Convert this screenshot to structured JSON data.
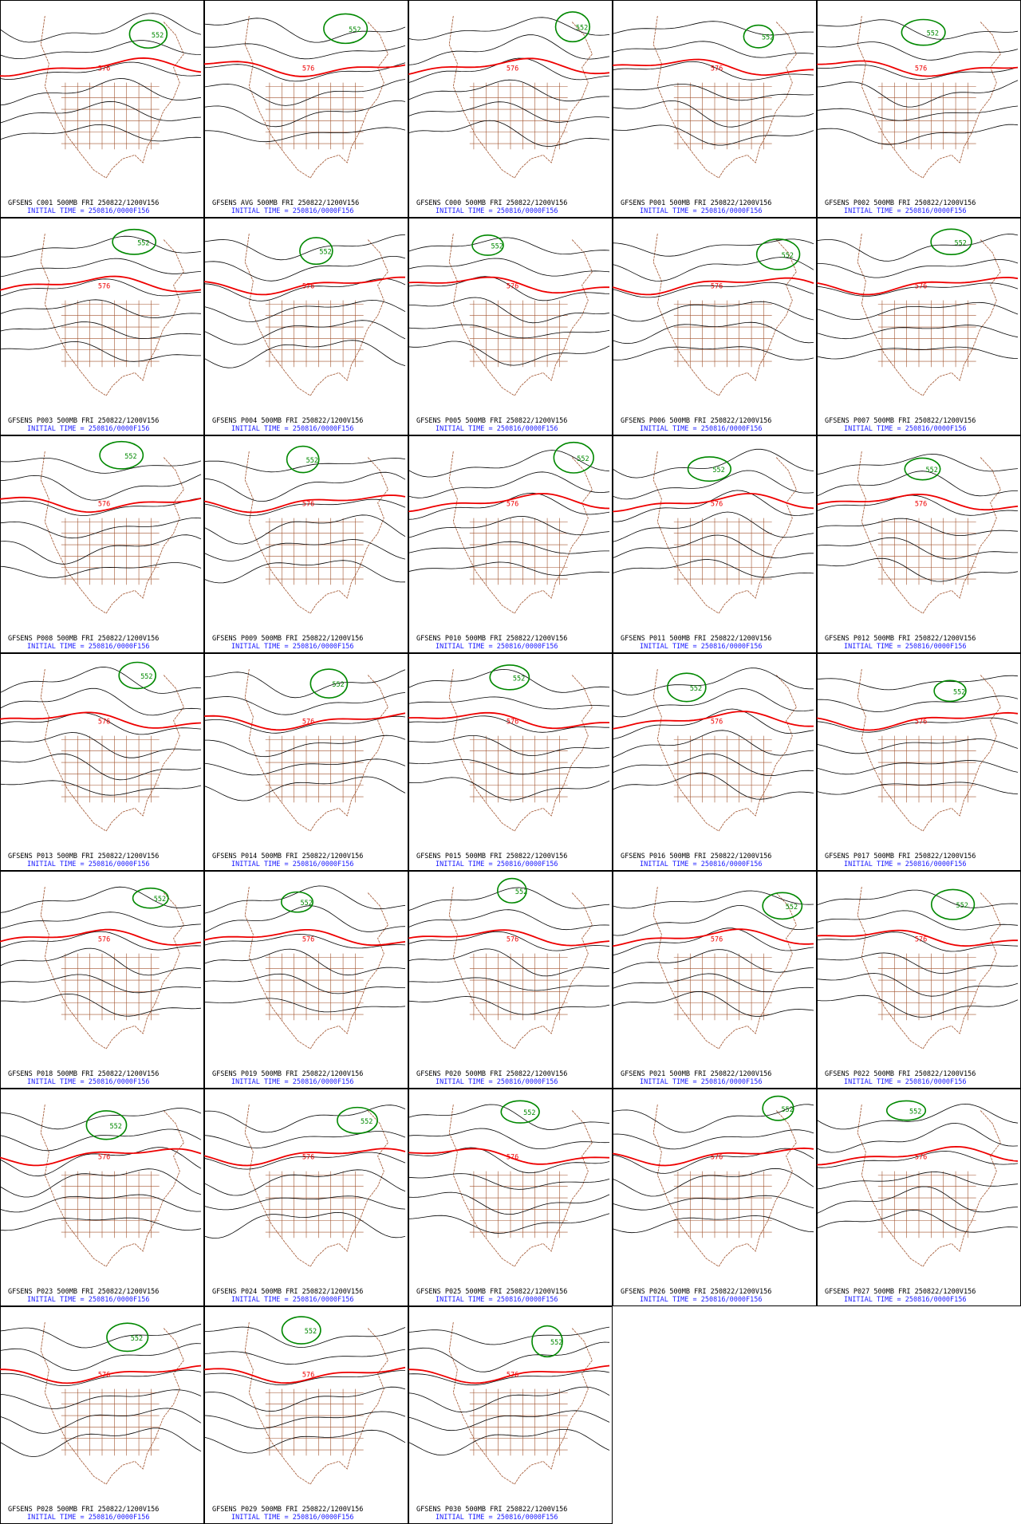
{
  "panels": [
    {
      "caption": "GFSENS C001 500MB FRI 250822/1200V156",
      "initial_time": "INITIAL TIME = 250816/0000F156",
      "labels": [
        "576",
        "552"
      ]
    },
    {
      "caption": "GFSENS AVG 500MB FRI 250822/1200V156",
      "initial_time": "INITIAL TIME = 250816/0000F156",
      "labels": [
        "576",
        "552"
      ]
    },
    {
      "caption": "GFSENS C000 500MB FRI 250822/1200V156",
      "initial_time": "INITIAL TIME = 250816/0000F156",
      "labels": [
        "576",
        "552"
      ]
    },
    {
      "caption": "GFSENS P001 500MB FRI 250822/1200V156",
      "initial_time": "INITIAL TIME = 250816/0000F156",
      "labels": [
        "576",
        "552"
      ]
    },
    {
      "caption": "GFSENS P002 500MB FRI 250822/1200V156",
      "initial_time": "INITIAL TIME = 250816/0000F156",
      "labels": [
        "576",
        "552"
      ]
    },
    {
      "caption": "GFSENS P003 500MB FRI 250822/1200V156",
      "initial_time": "INITIAL TIME = 250816/0000F156",
      "labels": [
        "576",
        "552"
      ]
    },
    {
      "caption": "GFSENS P004 500MB FRI 250822/1200V156",
      "initial_time": "INITIAL TIME = 250816/0000F156",
      "labels": [
        "576",
        "552"
      ]
    },
    {
      "caption": "GFSENS P005 500MB FRI 250822/1200V156",
      "initial_time": "INITIAL TIME = 250816/0000F156",
      "labels": [
        "576",
        "552"
      ]
    },
    {
      "caption": "GFSENS P006 500MB FRI 250822/1200V156",
      "initial_time": "INITIAL TIME = 250816/0000F156",
      "labels": [
        "576",
        "552"
      ]
    },
    {
      "caption": "GFSENS P007 500MB FRI 250822/1200V156",
      "initial_time": "INITIAL TIME = 250816/0000F156",
      "labels": [
        "576",
        "552"
      ]
    },
    {
      "caption": "GFSENS P008 500MB FRI 250822/1200V156",
      "initial_time": "INITIAL TIME = 250816/0000F156",
      "labels": [
        "576",
        "552"
      ]
    },
    {
      "caption": "GFSENS P009 500MB FRI 250822/1200V156",
      "initial_time": "INITIAL TIME = 250816/0000F156",
      "labels": [
        "576",
        "552"
      ]
    },
    {
      "caption": "GFSENS P010 500MB FRI 250822/1200V156",
      "initial_time": "INITIAL TIME = 250816/0000F156",
      "labels": [
        "576",
        "552"
      ]
    },
    {
      "caption": "GFSENS P011 500MB FRI 250822/1200V156",
      "initial_time": "INITIAL TIME = 250816/0000F156",
      "labels": [
        "576",
        "552"
      ]
    },
    {
      "caption": "GFSENS P012 500MB FRI 250822/1200V156",
      "initial_time": "INITIAL TIME = 250816/0000F156",
      "labels": [
        "576",
        "552"
      ]
    },
    {
      "caption": "GFSENS P013 500MB FRI 250822/1200V156",
      "initial_time": "INITIAL TIME = 250816/0000F156",
      "labels": [
        "576",
        "552"
      ]
    },
    {
      "caption": "GFSENS P014 500MB FRI 250822/1200V156",
      "initial_time": "INITIAL TIME = 250816/0000F156",
      "labels": [
        "576",
        "552"
      ]
    },
    {
      "caption": "GFSENS P015 500MB FRI 250822/1200V156",
      "initial_time": "INITIAL TIME = 250816/0000F156",
      "labels": [
        "576",
        "552"
      ]
    },
    {
      "caption": "GFSENS P016 500MB FRI 250822/1200V156",
      "initial_time": "INITIAL TIME = 250816/0000F156",
      "labels": [
        "576",
        "552"
      ]
    },
    {
      "caption": "GFSENS P017 500MB FRI 250822/1200V156",
      "initial_time": "INITIAL TIME = 250816/0000F156",
      "labels": [
        "576",
        "552"
      ]
    },
    {
      "caption": "GFSENS P018 500MB FRI 250822/1200V156",
      "initial_time": "INITIAL TIME = 250816/0000F156",
      "labels": [
        "576",
        "552"
      ]
    },
    {
      "caption": "GFSENS P019 500MB FRI 250822/1200V156",
      "initial_time": "INITIAL TIME = 250816/0000F156",
      "labels": [
        "576",
        "552"
      ]
    },
    {
      "caption": "GFSENS P020 500MB FRI 250822/1200V156",
      "initial_time": "INITIAL TIME = 250816/0000F156",
      "labels": [
        "576",
        "552"
      ]
    },
    {
      "caption": "GFSENS P021 500MB FRI 250822/1200V156",
      "initial_time": "INITIAL TIME = 250816/0000F156",
      "labels": [
        "576",
        "552"
      ]
    },
    {
      "caption": "GFSENS P022 500MB FRI 250822/1200V156",
      "initial_time": "INITIAL TIME = 250816/0000F156",
      "labels": [
        "576",
        "552"
      ]
    },
    {
      "caption": "GFSENS P023 500MB FRI 250822/1200V156",
      "initial_time": "INITIAL TIME = 250816/0000F156",
      "labels": [
        "576",
        "552"
      ]
    },
    {
      "caption": "GFSENS P024 500MB FRI 250822/1200V156",
      "initial_time": "INITIAL TIME = 250816/0000F156",
      "labels": [
        "576",
        "552"
      ]
    },
    {
      "caption": "GFSENS P025 500MB FRI 250822/1200V156",
      "initial_time": "INITIAL TIME = 250816/0000F156",
      "labels": [
        "576",
        "552"
      ]
    },
    {
      "caption": "GFSENS P026 500MB FRI 250822/1200V156",
      "initial_time": "INITIAL TIME = 250816/0000F156",
      "labels": [
        "576",
        "552"
      ]
    },
    {
      "caption": "GFSENS P027 500MB FRI 250822/1200V156",
      "initial_time": "INITIAL TIME = 250816/0000F156",
      "labels": [
        "576",
        "552"
      ]
    },
    {
      "caption": "GFSENS P028 500MB FRI 250822/1200V156",
      "initial_time": "INITIAL TIME = 250816/0000F156",
      "labels": [
        "576",
        "552"
      ]
    },
    {
      "caption": "GFSENS P029 500MB FRI 250822/1200V156",
      "initial_time": "INITIAL TIME = 250816/0000F156",
      "labels": [
        "576",
        "552"
      ]
    },
    {
      "caption": "GFSENS P030 500MB FRI 250822/1200V156",
      "initial_time": "INITIAL TIME = 250816/0000F156",
      "labels": [
        "576",
        "552"
      ]
    }
  ]
}
